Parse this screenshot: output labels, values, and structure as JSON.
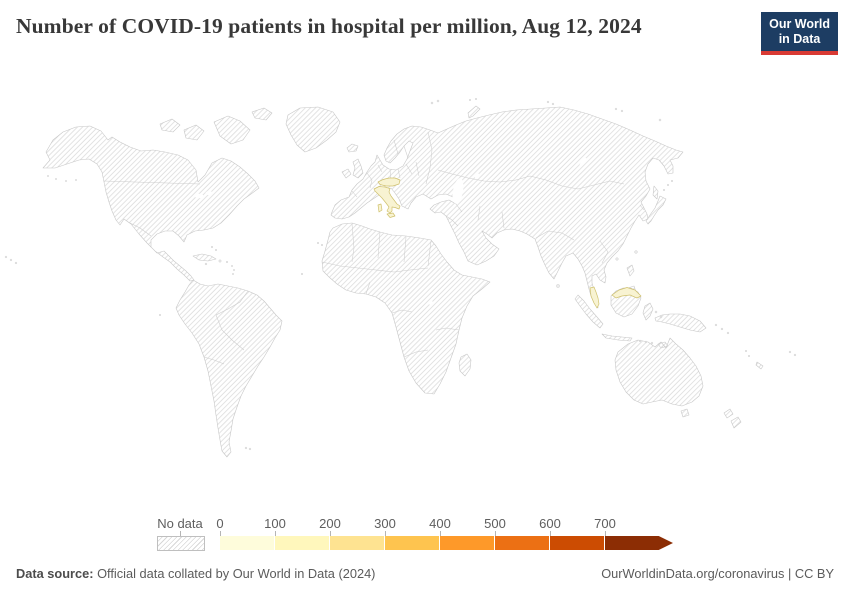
{
  "header": {
    "title": "Number of COVID-19 patients in hospital per million, Aug 12, 2024"
  },
  "logo": {
    "line1": "Our World",
    "line2": "in Data",
    "bg_color": "#1d3d63",
    "accent_color": "#d93a34"
  },
  "legend": {
    "no_data_label": "No data",
    "ticks": [
      "0",
      "100",
      "200",
      "300",
      "400",
      "500",
      "600",
      "700"
    ],
    "colors": [
      "#fefcdb",
      "#fff7bc",
      "#fee391",
      "#fec44f",
      "#fe9929",
      "#ec7014",
      "#cc4c02",
      "#8c2d04"
    ],
    "no_data_pattern": "diagonal-hatch"
  },
  "footer": {
    "source_label": "Data source:",
    "source_text": "Official data collated by Our World in Data (2024)",
    "credit": "OurWorldinData.org/coronavirus | CC BY"
  },
  "map": {
    "hatch_line_color": "#d9d9d9",
    "country_border_color": "#c7c7c7",
    "highlight_fill": "#f8f3d2",
    "highlight_stroke": "#cfc06c",
    "highlighted_countries": [
      "Italy",
      "Austria",
      "Malaysia"
    ]
  },
  "chart_data": {
    "type": "choropleth",
    "title": "Number of COVID-19 patients in hospital per million, Aug 12, 2024",
    "date": "Aug 12, 2024",
    "metric": "COVID-19 patients in hospital per million people",
    "legend_ticks": [
      0,
      100,
      200,
      300,
      400,
      500,
      600,
      700
    ],
    "legend_colors": [
      "#fefcdb",
      "#fff7bc",
      "#fee391",
      "#fec44f",
      "#fe9929",
      "#ec7014",
      "#cc4c02",
      "#8c2d04"
    ],
    "countries": [
      {
        "name": "Italy",
        "value_bucket": "0-100"
      },
      {
        "name": "Austria",
        "value_bucket": "0-100"
      },
      {
        "name": "Malaysia",
        "value_bucket": "0-100"
      }
    ],
    "no_data_regions": "all other countries (hatched)"
  }
}
